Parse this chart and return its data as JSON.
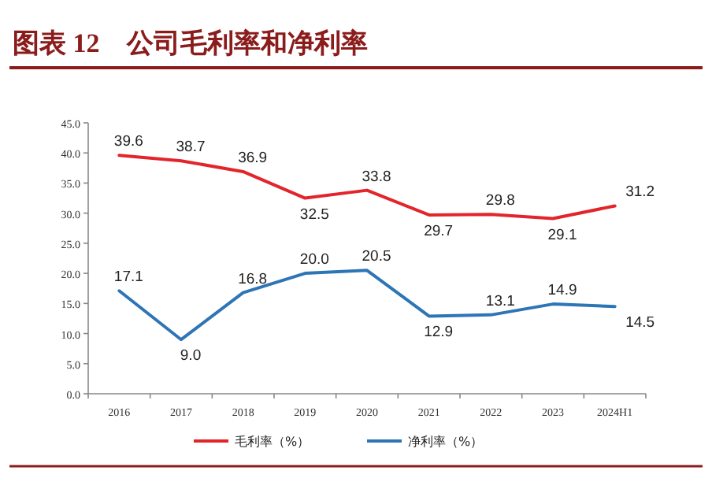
{
  "chart_data": {
    "type": "line",
    "title": "图表 12　公司毛利率和净利率",
    "categories": [
      "2016",
      "2017",
      "2018",
      "2019",
      "2020",
      "2021",
      "2022",
      "2023",
      "2024H1"
    ],
    "series": [
      {
        "name": "毛利率（%）",
        "color": "#e3242b",
        "values": [
          39.6,
          38.7,
          36.9,
          32.5,
          33.8,
          29.7,
          29.8,
          29.1,
          31.2
        ],
        "value_labels": [
          "39.6",
          "38.7",
          "36.9",
          "32.5",
          "33.8",
          "29.7",
          "29.8",
          "29.1",
          "31.2"
        ]
      },
      {
        "name": "净利率（%）",
        "color": "#2e75b6",
        "values": [
          17.1,
          9.0,
          16.8,
          20.0,
          20.5,
          12.9,
          13.1,
          14.9,
          14.5
        ],
        "value_labels": [
          "17.1",
          "9.0",
          "16.8",
          "20.0",
          "20.5",
          "12.9",
          "13.1",
          "14.9",
          "14.5"
        ]
      }
    ],
    "ylim": [
      0,
      45
    ],
    "yticks": [
      {
        "value": 0,
        "label": "0.0"
      },
      {
        "value": 5,
        "label": "5.0"
      },
      {
        "value": 10,
        "label": "10.0"
      },
      {
        "value": 15,
        "label": "15.0"
      },
      {
        "value": 20,
        "label": "20.0"
      },
      {
        "value": 25,
        "label": "25.0"
      },
      {
        "value": 30,
        "label": "30.0"
      },
      {
        "value": 35,
        "label": "35.0"
      },
      {
        "value": 40,
        "label": "40.0"
      },
      {
        "value": 45,
        "label": "45.0"
      }
    ],
    "legend": "bottom",
    "marker": "none",
    "line_style": "solid"
  }
}
